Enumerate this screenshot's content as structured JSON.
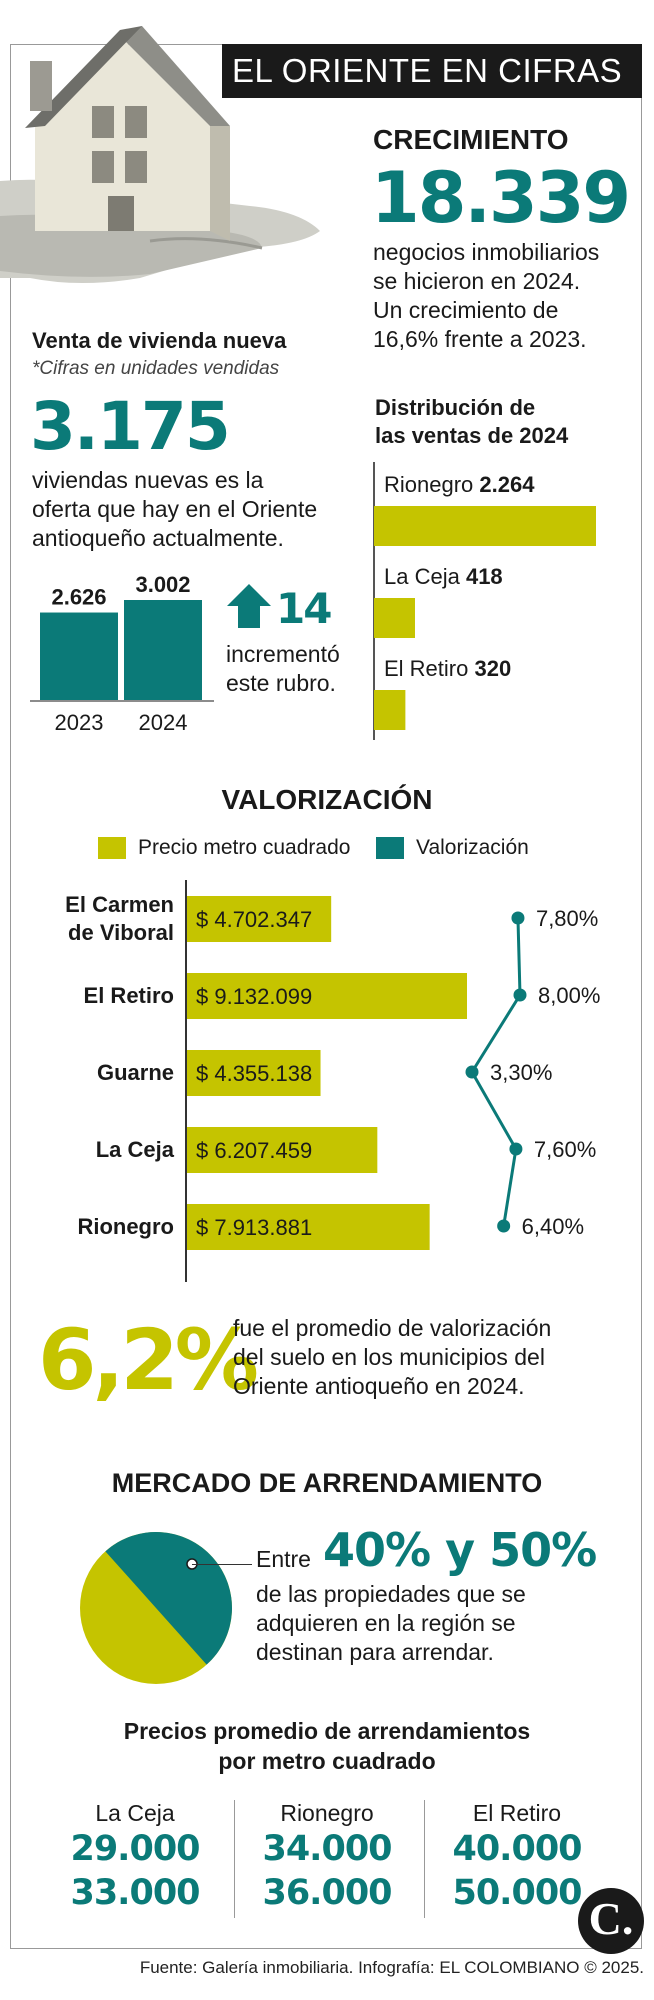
{
  "header": {
    "title": "EL ORIENTE EN CIFRAS"
  },
  "crecimiento": {
    "heading": "CRECIMIENTO",
    "value": "18.339",
    "lines": [
      "negocios inmobiliarios",
      "se hicieron en 2024.",
      "Un crecimiento de",
      "16,6% frente a 2023."
    ]
  },
  "vivienda": {
    "heading": "Venta de vivienda nueva",
    "note": "*Cifras en unidades vendidas",
    "value": "3.175",
    "lines": [
      "viviendas nuevas es la",
      "oferta que hay en el Oriente",
      "antioqueño actualmente."
    ],
    "increase_value": "14",
    "increase_lines": [
      "incrementó",
      "este rubro."
    ]
  },
  "distribucion": {
    "heading_lines": [
      "Distribución de",
      "las ventas de 2024"
    ]
  },
  "valorizacion": {
    "heading": "VALORIZACIÓN",
    "legend": [
      "Precio metro cuadrado",
      "Valorización"
    ]
  },
  "promedio": {
    "value": "6,2%",
    "lines": [
      "fue el promedio de valorización",
      "del suelo en los municipios del",
      "Oriente antioqueño en 2024."
    ]
  },
  "arrendamiento": {
    "heading": "MERCADO DE ARRENDAMIENTO",
    "entre": "Entre",
    "range": "40% y 50%",
    "lines": [
      "de las propiedades que se",
      "adquieren en la región se",
      "destinan para arrendar."
    ],
    "pie_share": 0.5,
    "prices_heading_lines": [
      "Precios promedio de arrendamientos",
      "por metro cuadrado"
    ],
    "cities": [
      {
        "name": "La Ceja",
        "low": "29.000",
        "high": "33.000"
      },
      {
        "name": "Rionegro",
        "low": "34.000",
        "high": "36.000"
      },
      {
        "name": "El Retiro",
        "low": "40.000",
        "high": "50.000"
      }
    ]
  },
  "footer": {
    "source": "Fuente: Galería inmobiliaria. Infografía: EL COLOMBIANO © 2025.",
    "logo": "C."
  },
  "colors": {
    "teal": "#0b7a78",
    "olive": "#c5c400",
    "dark": "#1a1a1a"
  },
  "chart_data": [
    {
      "type": "bar",
      "categories": [
        "2023",
        "2024"
      ],
      "values": [
        2626,
        3002
      ],
      "value_labels": [
        "2.626",
        "3.002"
      ]
    },
    {
      "type": "bar",
      "categories": [
        "Rionegro",
        "La Ceja",
        "El Retiro"
      ],
      "values": [
        2264,
        418,
        320
      ],
      "value_labels": [
        "2.264",
        "418",
        "320"
      ],
      "max": 2264
    },
    {
      "type": "bar",
      "categories": [
        "El Carmen de Viboral",
        "El Retiro",
        "Guarne",
        "La Ceja",
        "Rionegro"
      ],
      "category_lines": [
        [
          "El Carmen",
          "de Viboral"
        ],
        [
          "El Retiro"
        ],
        [
          "Guarne"
        ],
        [
          "La Ceja"
        ],
        [
          "Rionegro"
        ]
      ],
      "series": [
        {
          "name": "Precio metro cuadrado",
          "values": [
            4702347,
            9132099,
            4355138,
            6207459,
            7913881
          ],
          "labels": [
            "$ 4.702.347",
            "$ 9.132.099",
            "$ 4.355.138",
            "$ 6.207.459",
            "$ 7.913.881"
          ]
        },
        {
          "name": "Valorización",
          "values": [
            7.8,
            8.0,
            3.3,
            7.6,
            6.4
          ],
          "labels": [
            "7,80%",
            "8,00%",
            "3,30%",
            "7,60%",
            "6,40%"
          ]
        }
      ],
      "price_max": 9132099,
      "valor_range": [
        3.3,
        8.0
      ]
    }
  ]
}
